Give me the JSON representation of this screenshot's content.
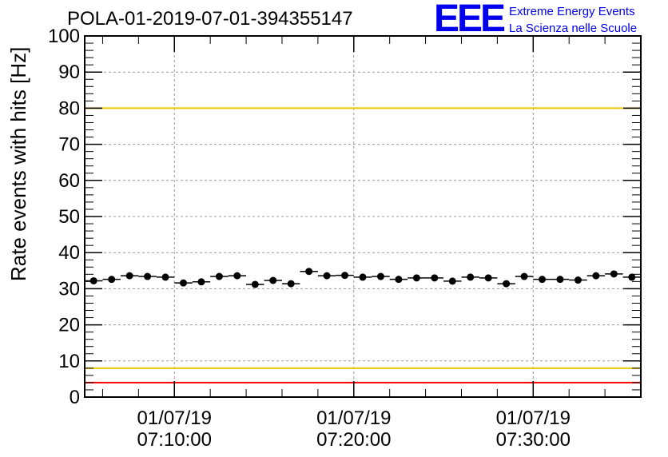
{
  "chart_data": {
    "type": "scatter",
    "title": "POLA-01-2019-07-01-394355147",
    "ylabel": "Rate events with hits [Hz]",
    "xlabel": "",
    "ylim": [
      0,
      100
    ],
    "yticks": [
      0,
      10,
      20,
      30,
      40,
      50,
      60,
      70,
      80,
      90,
      100
    ],
    "xlim": [
      "2019-07-01 07:05:00",
      "2019-07-01 07:36:00"
    ],
    "xticks": [
      {
        "date": "01/07/19",
        "time": "07:10:00"
      },
      {
        "date": "01/07/19",
        "time": "07:20:00"
      },
      {
        "date": "01/07/19",
        "time": "07:30:00"
      }
    ],
    "grid": true,
    "reference_lines": [
      {
        "y": 100,
        "color": "#ff0000"
      },
      {
        "y": 80,
        "color": "#e8c800"
      },
      {
        "y": 8,
        "color": "#e8c800"
      },
      {
        "y": 4,
        "color": "#ff0000"
      }
    ],
    "series": [
      {
        "x": [
          "07:05:30",
          "07:06:30",
          "07:07:30",
          "07:08:30",
          "07:09:30",
          "07:10:30",
          "07:11:30",
          "07:12:30",
          "07:13:30",
          "07:14:30",
          "07:15:30",
          "07:16:30",
          "07:17:30",
          "07:18:30",
          "07:19:30",
          "07:20:30",
          "07:21:30",
          "07:22:30",
          "07:23:30",
          "07:24:30",
          "07:25:30",
          "07:26:30",
          "07:27:30",
          "07:28:30",
          "07:29:30",
          "07:30:30",
          "07:31:30",
          "07:32:30",
          "07:33:30",
          "07:34:30",
          "07:35:30"
        ],
        "values": [
          32.2,
          32.6,
          33.6,
          33.4,
          33.2,
          31.6,
          31.9,
          33.4,
          33.6,
          31.2,
          32.3,
          31.4,
          34.8,
          33.6,
          33.7,
          33.2,
          33.4,
          32.6,
          33.0,
          33.0,
          32.1,
          33.2,
          33.0,
          31.4,
          33.4,
          32.6,
          32.6,
          32.4,
          33.6,
          34.1,
          33.2
        ]
      }
    ],
    "marker_color": "#000000"
  },
  "logo": {
    "mark": "EEE",
    "line1": "Extreme Energy Events",
    "line2": "La Scienza nelle Scuole",
    "color": "#0000ee"
  }
}
